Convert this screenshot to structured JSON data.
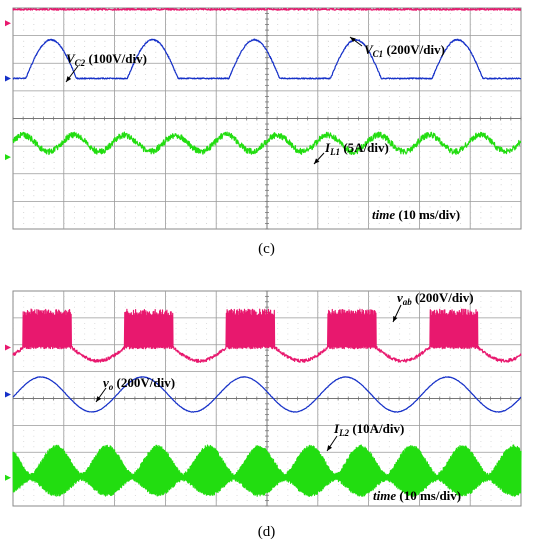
{
  "chart_data": [
    {
      "type": "line",
      "panel": "c",
      "caption": "(c)",
      "grid": true,
      "x_divisions": 10,
      "y_divisions": 8,
      "x_scale": "10 ms/div",
      "time_label": {
        "var": "time",
        "text": " (10 ms/div)"
      },
      "series": [
        {
          "name": "VC1",
          "color": "#e8186e",
          "scale": "200V/div",
          "label_var": "V",
          "label_sub": "C1",
          "label_text": " (200V/div)",
          "shape": "flat-noisy",
          "level_div": 0.05
        },
        {
          "name": "VC2",
          "color": "#1530c8",
          "scale": "100V/div",
          "label_var": "V",
          "label_sub": "C2",
          "label_text": " (100V/div)",
          "shape": "half-sine-pulses",
          "base_div": 2.55,
          "peak_div": 1.4,
          "period_div": 2,
          "pulse_width_div": 1.0
        },
        {
          "name": "IL1",
          "color": "#22dd10",
          "scale": "5A/div",
          "label_var": "I",
          "label_sub": "L1",
          "label_text": " (5A/div)",
          "shape": "sine",
          "center_div": 4.9,
          "amp_div": 0.3,
          "period_div": 1.0
        }
      ]
    },
    {
      "type": "line",
      "panel": "d",
      "caption": "(d)",
      "grid": true,
      "x_divisions": 10,
      "y_divisions": 8,
      "x_scale": "10 ms/div",
      "time_label": {
        "var": "time",
        "text": " (10 ms/div)"
      },
      "series": [
        {
          "name": "vab",
          "color": "#e8186e",
          "scale": "200V/div",
          "label_var": "v",
          "label_sub": "ab",
          "label_text": " (200V/div)",
          "shape": "pwm-blocks",
          "low_div": 2.1,
          "high_div": 0.8,
          "period_div": 2,
          "dip_div": 0.5
        },
        {
          "name": "vo",
          "color": "#1530c8",
          "scale": "200V/div",
          "label_var": "v",
          "label_sub": "o",
          "label_text": " (200V/div)",
          "shape": "sine",
          "center_div": 3.85,
          "amp_div": 0.65,
          "period_div": 2
        },
        {
          "name": "IL2",
          "color": "#22dd10",
          "scale": "10A/div",
          "label_var": "I",
          "label_sub": "L2",
          "label_text": " (10A/div)",
          "shape": "abs-sine-envelope",
          "base_div": 6.95,
          "amp_div": 1.05,
          "period_div": 2
        }
      ]
    }
  ]
}
